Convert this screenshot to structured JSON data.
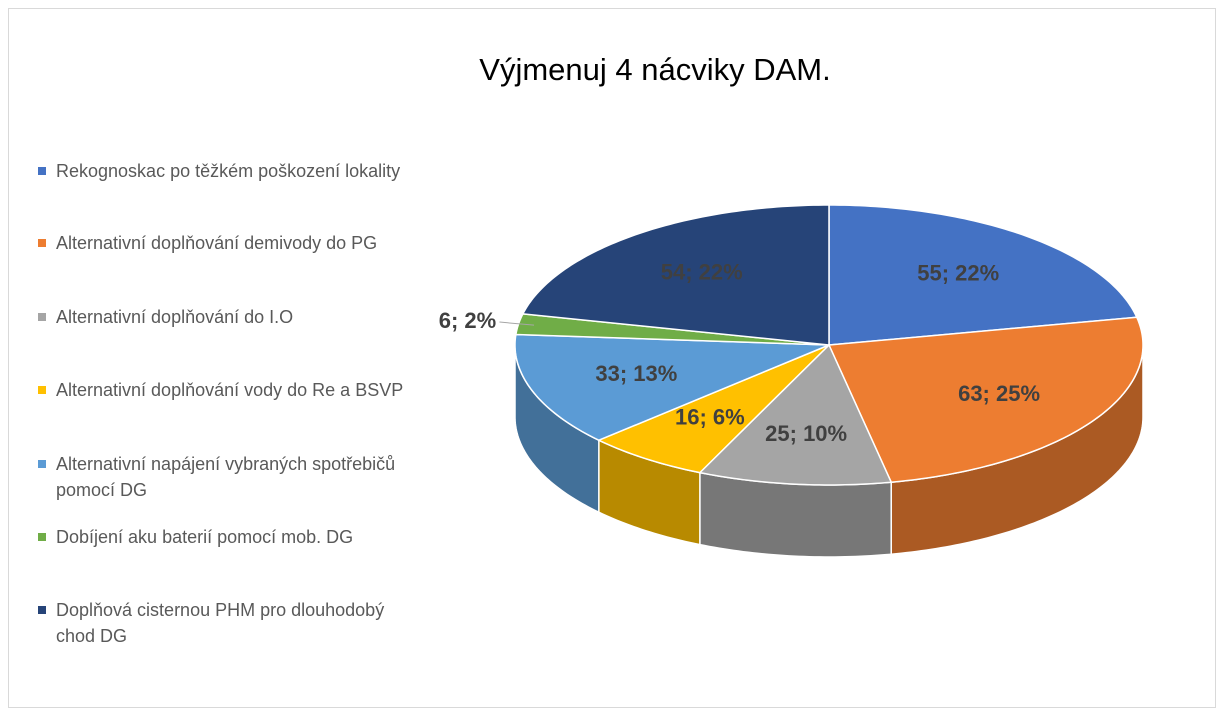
{
  "chart_data": {
    "type": "pie3d",
    "title": "Výjmenuj 4 nácviky DAM.",
    "categories": [
      "Rekognoskac po těžkém poškození lokality",
      "Alternativní doplňování demivody do PG",
      "Alternativní doplňování do I.O",
      "Alternativní doplňování vody do Re a BSVP",
      "Alternativní napájení vybraných spotřebičů pomocí DG",
      "Dobíjení aku baterií pomocí mob. DG",
      "Doplňová cisternou PHM pro dlouhodobý chod DG"
    ],
    "values": [
      55,
      63,
      25,
      16,
      33,
      6,
      54
    ],
    "value_labels": [
      "55; 22%",
      "63; 25%",
      "25; 10%",
      "16; 6%",
      "33; 13%",
      "6; 2%",
      "54; 22%"
    ],
    "colors": [
      "#4472c4",
      "#ed7d31",
      "#a5a5a5",
      "#ffc000",
      "#5b9bd5",
      "#70ad47",
      "#264478"
    ],
    "legend": "left"
  }
}
